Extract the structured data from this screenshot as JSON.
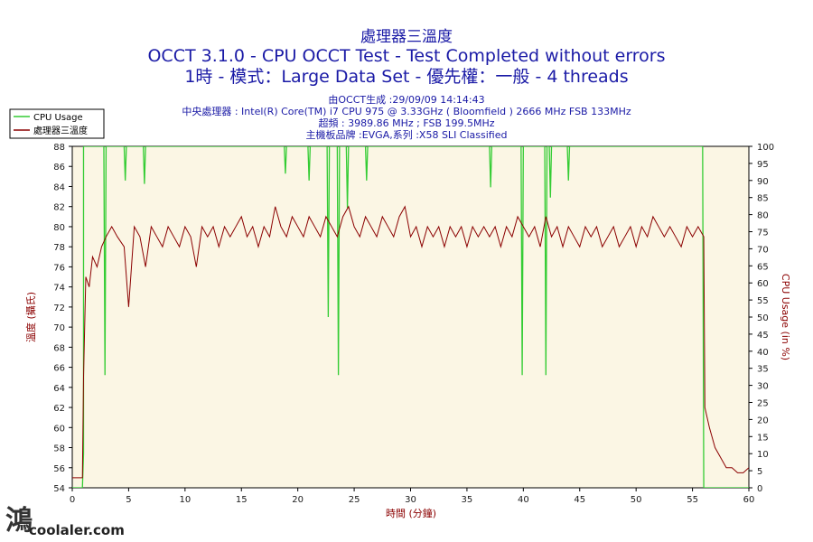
{
  "chart_data": {
    "type": "line",
    "title": "處理器三溫度",
    "subtitle_line1": "OCCT 3.1.0 - CPU OCCT Test - Test Completed without errors",
    "subtitle_line2": "1時 - 模式：Large Data Set - 優先權：一般 - 4 threads",
    "info": {
      "generated": "由OCCT生成 :29/09/09 14:14:43",
      "cpu": "中央處理器 : Intel(R) Core(TM) i7 CPU 975 @ 3.33GHz ( Bloomfield ) 2666 MHz FSB 133MHz",
      "overclock": "超頻 : 3989.86 MHz ; FSB 199.5MHz",
      "motherboard": "主機板品牌 :EVGA,系列 :X58 SLI Classified"
    },
    "xlabel": "時間 (分鐘)",
    "ylabel_left": "溫度 (攝氏)",
    "ylabel_right": "CPU Usage (in %)",
    "xlim": [
      0,
      60
    ],
    "ylim_left": [
      54,
      88
    ],
    "ylim_right": [
      0,
      100
    ],
    "x_ticks": [
      0,
      5,
      10,
      15,
      20,
      25,
      30,
      35,
      40,
      45,
      50,
      55,
      60
    ],
    "y_ticks_left": [
      54,
      56,
      58,
      60,
      62,
      64,
      66,
      68,
      70,
      72,
      74,
      76,
      78,
      80,
      82,
      84,
      86,
      88
    ],
    "y_ticks_right": [
      0,
      5,
      10,
      15,
      20,
      25,
      30,
      35,
      40,
      45,
      50,
      55,
      60,
      65,
      70,
      75,
      80,
      85,
      90,
      95,
      100
    ],
    "legend_position": "top-left",
    "series": [
      {
        "name": "CPU Usage",
        "axis": "right",
        "color": "#33cc33",
        "points": [
          [
            0,
            0
          ],
          [
            0.9,
            0
          ],
          [
            1.0,
            10
          ],
          [
            1.0,
            100
          ],
          [
            2.8,
            100
          ],
          [
            2.9,
            33
          ],
          [
            3.0,
            100
          ],
          [
            4.6,
            100
          ],
          [
            4.7,
            90
          ],
          [
            4.8,
            100
          ],
          [
            6.3,
            100
          ],
          [
            6.4,
            89
          ],
          [
            6.5,
            100
          ],
          [
            18.8,
            100
          ],
          [
            18.9,
            92
          ],
          [
            19.0,
            100
          ],
          [
            20.9,
            100
          ],
          [
            21.0,
            90
          ],
          [
            21.1,
            100
          ],
          [
            22.6,
            100
          ],
          [
            22.7,
            50
          ],
          [
            22.8,
            100
          ],
          [
            23.5,
            100
          ],
          [
            23.6,
            33
          ],
          [
            23.7,
            100
          ],
          [
            24.3,
            100
          ],
          [
            24.4,
            82
          ],
          [
            24.5,
            100
          ],
          [
            26.0,
            100
          ],
          [
            26.1,
            90
          ],
          [
            26.2,
            100
          ],
          [
            37.0,
            100
          ],
          [
            37.1,
            88
          ],
          [
            37.2,
            100
          ],
          [
            39.8,
            100
          ],
          [
            39.9,
            33
          ],
          [
            40.0,
            100
          ],
          [
            41.9,
            100
          ],
          [
            42.0,
            33
          ],
          [
            42.1,
            100
          ],
          [
            42.3,
            100
          ],
          [
            42.4,
            85
          ],
          [
            42.5,
            100
          ],
          [
            43.9,
            100
          ],
          [
            44.0,
            90
          ],
          [
            44.1,
            100
          ],
          [
            55.9,
            100
          ],
          [
            56.0,
            0
          ],
          [
            60,
            0
          ]
        ]
      },
      {
        "name": "處理器三溫度",
        "axis": "left",
        "color": "#8b0000",
        "points": [
          [
            0,
            55
          ],
          [
            0.9,
            55
          ],
          [
            1.0,
            65
          ],
          [
            1.2,
            75
          ],
          [
            1.5,
            74
          ],
          [
            1.8,
            77
          ],
          [
            2.2,
            76
          ],
          [
            2.6,
            78
          ],
          [
            3.0,
            79
          ],
          [
            3.5,
            80
          ],
          [
            4.0,
            79
          ],
          [
            4.6,
            78
          ],
          [
            5.0,
            72
          ],
          [
            5.5,
            80
          ],
          [
            6.0,
            79
          ],
          [
            6.5,
            76
          ],
          [
            7.0,
            80
          ],
          [
            7.5,
            79
          ],
          [
            8.0,
            78
          ],
          [
            8.5,
            80
          ],
          [
            9.0,
            79
          ],
          [
            9.5,
            78
          ],
          [
            10.0,
            80
          ],
          [
            10.5,
            79
          ],
          [
            11.0,
            76
          ],
          [
            11.5,
            80
          ],
          [
            12.0,
            79
          ],
          [
            12.5,
            80
          ],
          [
            13.0,
            78
          ],
          [
            13.5,
            80
          ],
          [
            14.0,
            79
          ],
          [
            14.5,
            80
          ],
          [
            15.0,
            81
          ],
          [
            15.5,
            79
          ],
          [
            16.0,
            80
          ],
          [
            16.5,
            78
          ],
          [
            17.0,
            80
          ],
          [
            17.5,
            79
          ],
          [
            18.0,
            82
          ],
          [
            18.5,
            80
          ],
          [
            19.0,
            79
          ],
          [
            19.5,
            81
          ],
          [
            20.0,
            80
          ],
          [
            20.5,
            79
          ],
          [
            21.0,
            81
          ],
          [
            21.5,
            80
          ],
          [
            22.0,
            79
          ],
          [
            22.5,
            81
          ],
          [
            23.0,
            80
          ],
          [
            23.5,
            79
          ],
          [
            24.0,
            81
          ],
          [
            24.5,
            82
          ],
          [
            25.0,
            80
          ],
          [
            25.5,
            79
          ],
          [
            26.0,
            81
          ],
          [
            26.5,
            80
          ],
          [
            27.0,
            79
          ],
          [
            27.5,
            81
          ],
          [
            28.0,
            80
          ],
          [
            28.5,
            79
          ],
          [
            29.0,
            81
          ],
          [
            29.5,
            82
          ],
          [
            30.0,
            79
          ],
          [
            30.5,
            80
          ],
          [
            31.0,
            78
          ],
          [
            31.5,
            80
          ],
          [
            32.0,
            79
          ],
          [
            32.5,
            80
          ],
          [
            33.0,
            78
          ],
          [
            33.5,
            80
          ],
          [
            34.0,
            79
          ],
          [
            34.5,
            80
          ],
          [
            35.0,
            78
          ],
          [
            35.5,
            80
          ],
          [
            36.0,
            79
          ],
          [
            36.5,
            80
          ],
          [
            37.0,
            79
          ],
          [
            37.5,
            80
          ],
          [
            38.0,
            78
          ],
          [
            38.5,
            80
          ],
          [
            39.0,
            79
          ],
          [
            39.5,
            81
          ],
          [
            40.0,
            80
          ],
          [
            40.5,
            79
          ],
          [
            41.0,
            80
          ],
          [
            41.5,
            78
          ],
          [
            42.0,
            81
          ],
          [
            42.5,
            79
          ],
          [
            43.0,
            80
          ],
          [
            43.5,
            78
          ],
          [
            44.0,
            80
          ],
          [
            44.5,
            79
          ],
          [
            45.0,
            78
          ],
          [
            45.5,
            80
          ],
          [
            46.0,
            79
          ],
          [
            46.5,
            80
          ],
          [
            47.0,
            78
          ],
          [
            47.5,
            79
          ],
          [
            48.0,
            80
          ],
          [
            48.5,
            78
          ],
          [
            49.0,
            79
          ],
          [
            49.5,
            80
          ],
          [
            50.0,
            78
          ],
          [
            50.5,
            80
          ],
          [
            51.0,
            79
          ],
          [
            51.5,
            81
          ],
          [
            52.0,
            80
          ],
          [
            52.5,
            79
          ],
          [
            53.0,
            80
          ],
          [
            53.5,
            79
          ],
          [
            54.0,
            78
          ],
          [
            54.5,
            80
          ],
          [
            55.0,
            79
          ],
          [
            55.5,
            80
          ],
          [
            56.0,
            79
          ],
          [
            56.1,
            62
          ],
          [
            56.5,
            60
          ],
          [
            57.0,
            58
          ],
          [
            57.5,
            57
          ],
          [
            58.0,
            56
          ],
          [
            58.5,
            56
          ],
          [
            59.0,
            55.5
          ],
          [
            59.5,
            55.5
          ],
          [
            60.0,
            56
          ]
        ]
      }
    ]
  },
  "watermark": {
    "text": "coolaler.com",
    "glyph": "鴻"
  }
}
